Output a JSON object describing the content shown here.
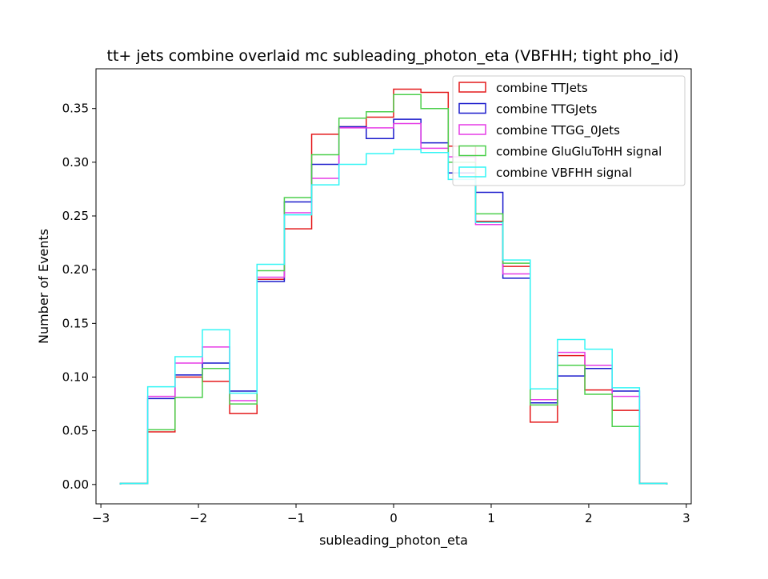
{
  "chart_data": {
    "type": "histogram-step",
    "title": "tt+ jets combine overlaid mc subleading_photon_eta (VBFHH; tight pho_id)",
    "xlabel": "subleading_photon_eta",
    "ylabel": "Number of Events",
    "xlim": [
      -3.05,
      3.05
    ],
    "ylim": [
      -0.018,
      0.387
    ],
    "xticks": [
      -3,
      -2,
      -1,
      0,
      1,
      2,
      3
    ],
    "xtick_labels": [
      "−3",
      "−2",
      "−1",
      "0",
      "1",
      "2",
      "3"
    ],
    "yticks": [
      0.0,
      0.05,
      0.1,
      0.15,
      0.2,
      0.25,
      0.3,
      0.35
    ],
    "ytick_labels": [
      "0.00",
      "0.05",
      "0.10",
      "0.15",
      "0.20",
      "0.25",
      "0.30",
      "0.35"
    ],
    "legend_position": "top-right",
    "bin_edges": [
      -2.8,
      -2.52,
      -2.24,
      -1.96,
      -1.68,
      -1.4,
      -1.12,
      -0.84,
      -0.56,
      -0.28,
      0.0,
      0.28,
      0.56,
      0.84,
      1.12,
      1.4,
      1.68,
      1.96,
      2.24,
      2.52,
      2.8
    ],
    "series": [
      {
        "name": "combine TTJets",
        "color": "#e41a1c",
        "values": [
          0.001,
          0.049,
          0.1,
          0.096,
          0.066,
          0.191,
          0.238,
          0.326,
          0.333,
          0.342,
          0.368,
          0.365,
          0.315,
          0.245,
          0.203,
          0.058,
          0.12,
          0.088,
          0.069,
          0.001
        ]
      },
      {
        "name": "combine TTGJets",
        "color": "#1a1acc",
        "values": [
          0.001,
          0.08,
          0.102,
          0.113,
          0.087,
          0.189,
          0.263,
          0.298,
          0.333,
          0.322,
          0.34,
          0.318,
          0.29,
          0.272,
          0.192,
          0.076,
          0.101,
          0.108,
          0.087,
          0.001
        ]
      },
      {
        "name": "combine TTGG_0Jets",
        "color": "#e63ce6",
        "values": [
          0.001,
          0.082,
          0.113,
          0.128,
          0.078,
          0.193,
          0.253,
          0.285,
          0.332,
          0.332,
          0.336,
          0.313,
          0.305,
          0.242,
          0.196,
          0.079,
          0.123,
          0.111,
          0.082,
          0.001
        ]
      },
      {
        "name": "combine GluGluToHH signal",
        "color": "#4ccf4c",
        "values": [
          0.001,
          0.051,
          0.081,
          0.108,
          0.075,
          0.199,
          0.267,
          0.307,
          0.341,
          0.347,
          0.363,
          0.35,
          0.3,
          0.252,
          0.206,
          0.074,
          0.111,
          0.084,
          0.054,
          0.001
        ]
      },
      {
        "name": "combine VBFHH signal",
        "color": "#33f5f5",
        "values": [
          0.001,
          0.091,
          0.119,
          0.144,
          0.085,
          0.205,
          0.251,
          0.279,
          0.298,
          0.308,
          0.312,
          0.309,
          0.284,
          0.244,
          0.209,
          0.089,
          0.135,
          0.126,
          0.09,
          0.001
        ]
      }
    ]
  }
}
